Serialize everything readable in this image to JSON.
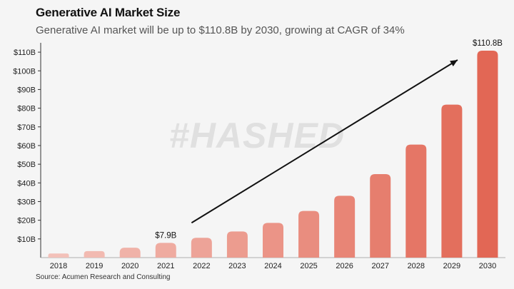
{
  "title": "Generative AI Market Size",
  "subtitle": "Generative AI market will be up to $110.8B by 2030, growing at CAGR of 34%",
  "source": "Source: Acumen Research and Consulting",
  "watermark": "#HASHED",
  "colors": {
    "bar_start": "#f3c1b9",
    "bar_end": "#e26755",
    "arrow": "#111111"
  },
  "chart_data": {
    "type": "bar",
    "title": "Generative AI Market Size",
    "xlabel": "",
    "ylabel": "",
    "categories": [
      "2018",
      "2019",
      "2020",
      "2021",
      "2022",
      "2023",
      "2024",
      "2025",
      "2026",
      "2027",
      "2028",
      "2029",
      "2030"
    ],
    "values": [
      2.2,
      3.5,
      5.3,
      7.9,
      10.6,
      14.0,
      18.6,
      25.0,
      33.1,
      44.7,
      60.5,
      81.9,
      110.8
    ],
    "ylim": [
      0,
      115
    ],
    "yticks": [
      10,
      20,
      30,
      40,
      50,
      60,
      70,
      80,
      90,
      100,
      110
    ],
    "ytick_labels": [
      "$10B",
      "$20B",
      "$30B",
      "$40B",
      "$50B",
      "$60B",
      "$70B",
      "$80B",
      "$90B",
      "$100B",
      "$110B"
    ],
    "annotations": [
      {
        "category": "2021",
        "label": "$7.9B"
      },
      {
        "category": "2030",
        "label": "$110.8B"
      }
    ],
    "trend_arrow": {
      "from_category": "2022",
      "to_category": "2030"
    }
  }
}
